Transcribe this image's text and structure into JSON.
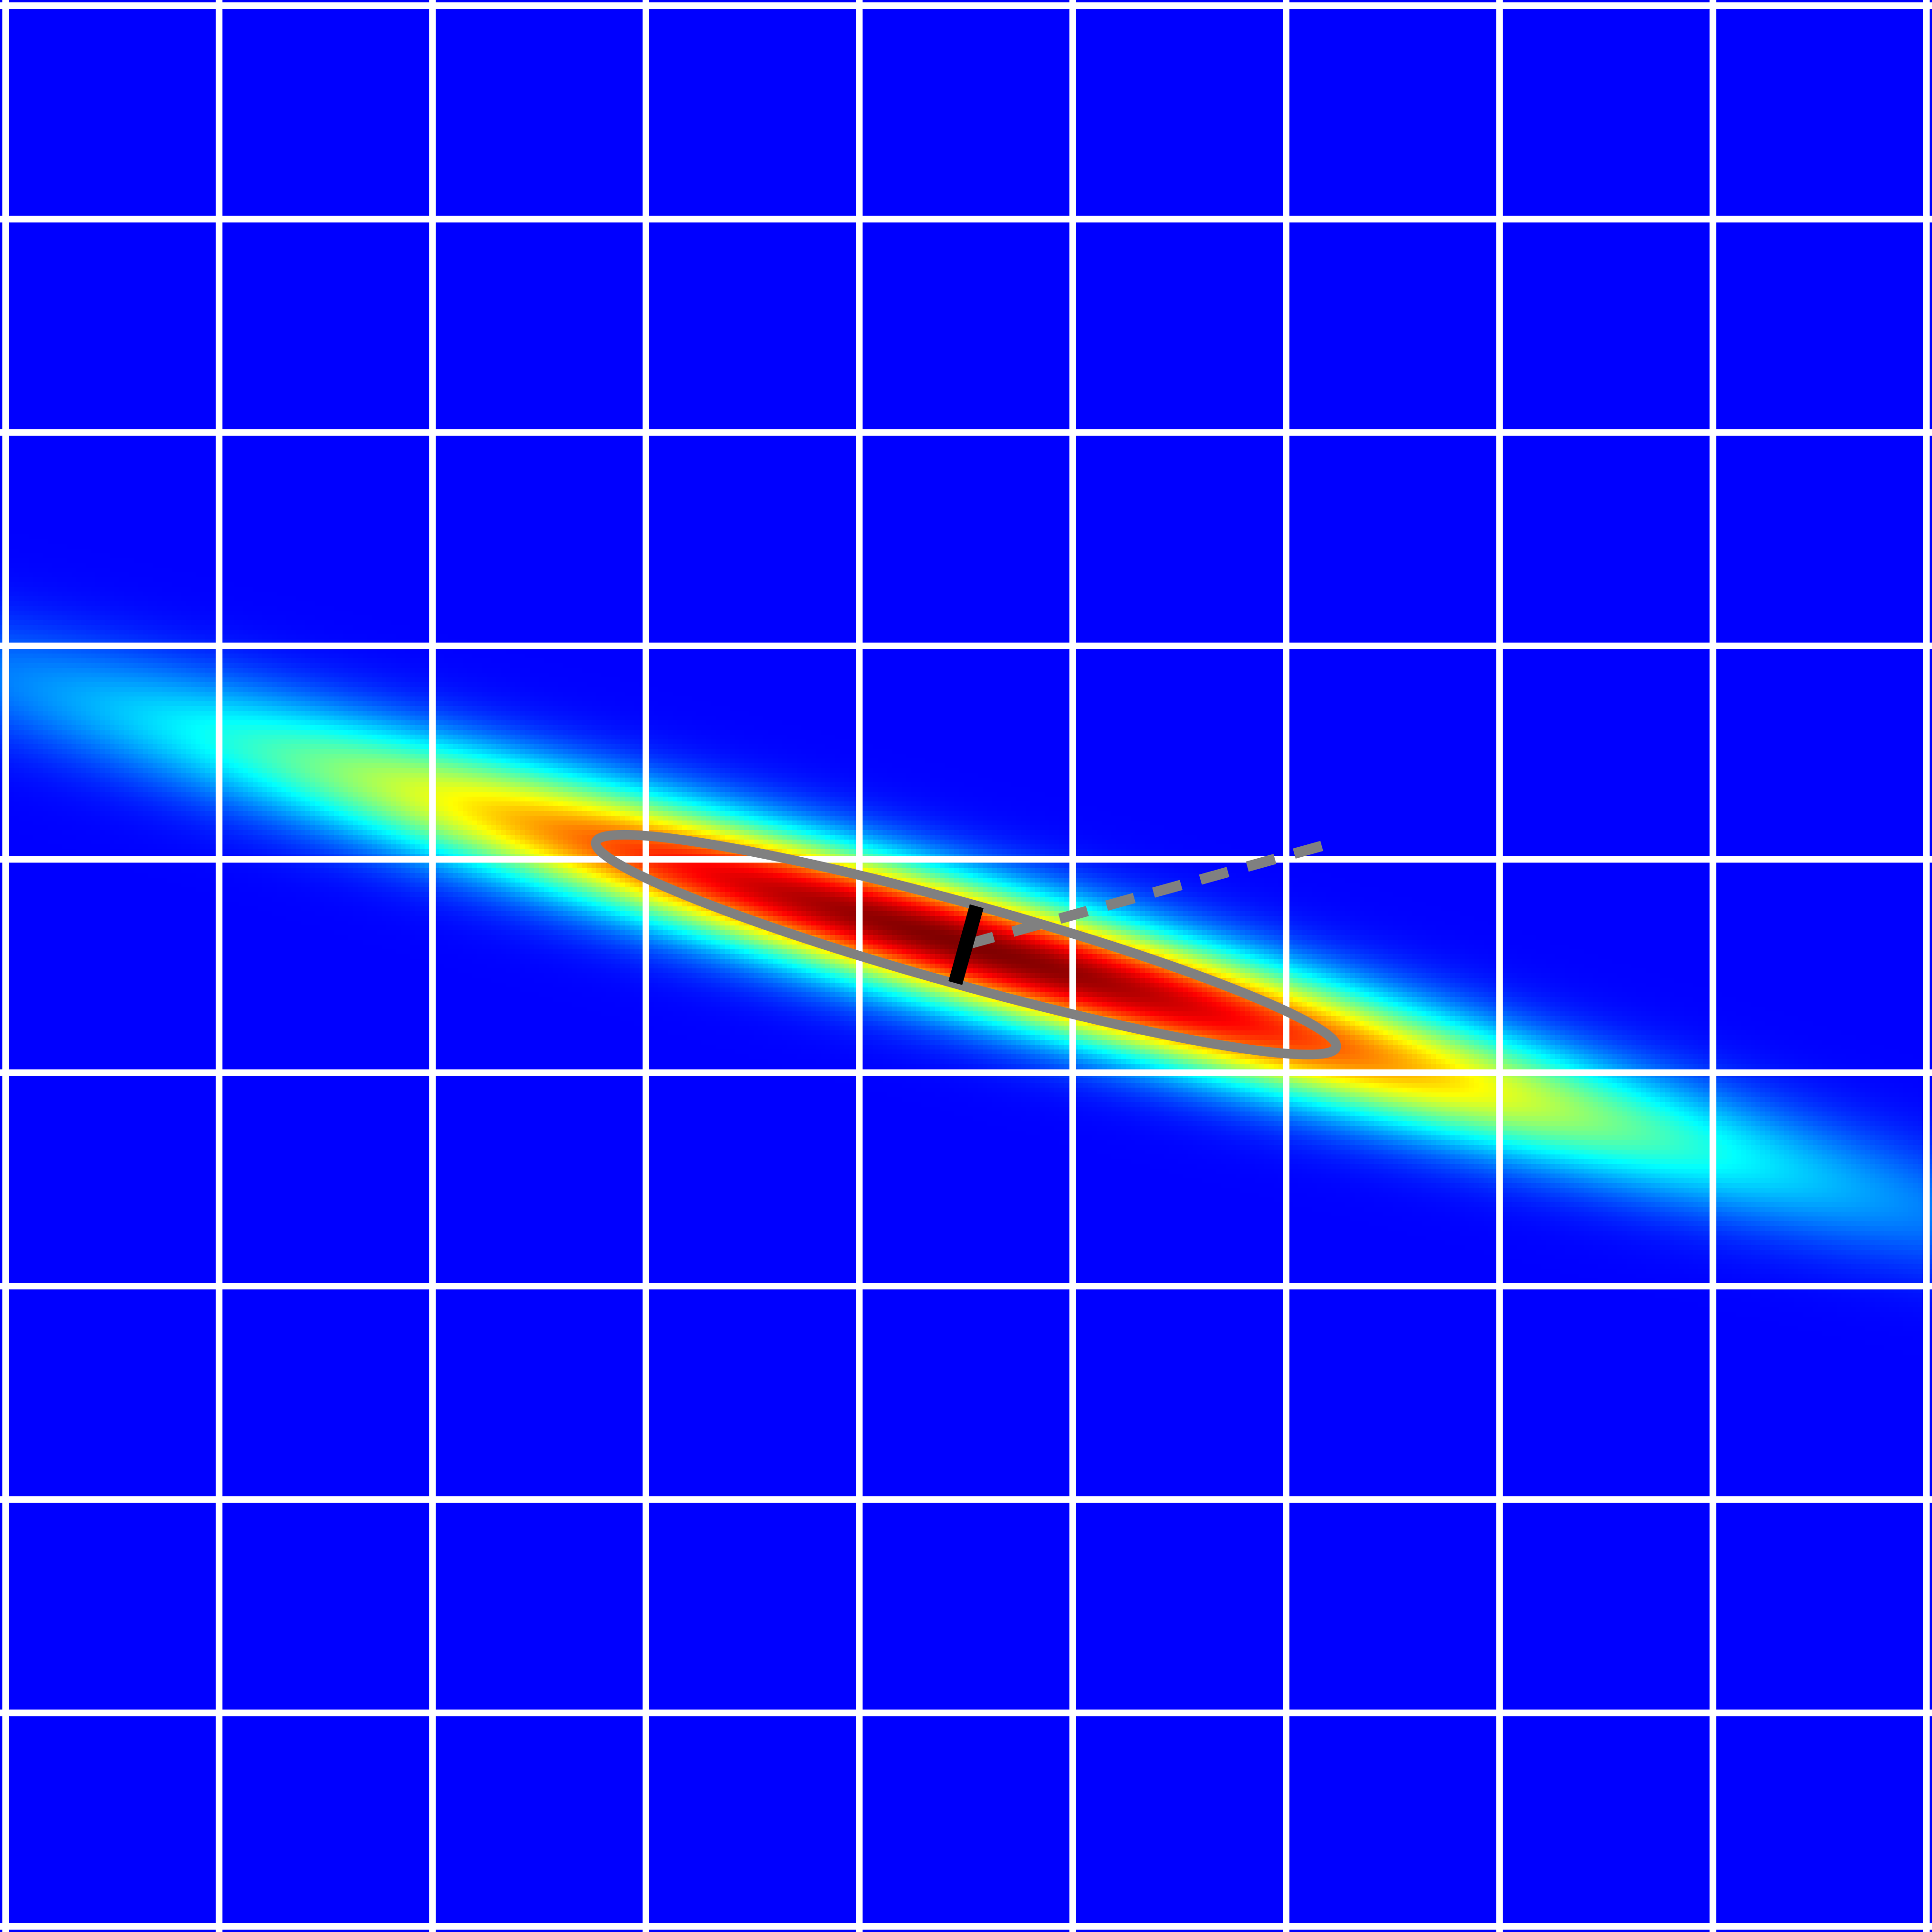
{
  "chart_data": {
    "type": "heatmap",
    "title": "",
    "xlabel": "",
    "ylabel": "",
    "grid": true,
    "xlim": [
      0,
      9
    ],
    "ylim": [
      0,
      9
    ],
    "gridlines": {
      "x": [
        1,
        2,
        3,
        4,
        5,
        6,
        7,
        8
      ],
      "y": [
        1,
        2,
        3,
        4,
        5,
        6,
        7,
        8
      ]
    },
    "colormap": "jet",
    "background_color": "#000080",
    "grid_color": "#ffffff",
    "gaussian": {
      "center": [
        4.5,
        4.4
      ],
      "major_axis_angle_deg": -15.5,
      "sigma_major": 2.35,
      "sigma_minor": 0.2
    },
    "ellipse": {
      "center": [
        4.5,
        4.4
      ],
      "semi_major": 1.8,
      "semi_minor": 0.19,
      "angle_deg": -15.5,
      "color": "#808080",
      "style": "solid"
    },
    "major_axis_marker": {
      "from": [
        4.5,
        4.4
      ],
      "to": [
        6.23,
        3.92
      ],
      "color": "#808080",
      "style": "dashed"
    },
    "minor_axis_marker": {
      "from": [
        4.45,
        4.58
      ],
      "to": [
        4.55,
        4.22
      ],
      "color": "#000000",
      "style": "solid"
    }
  }
}
